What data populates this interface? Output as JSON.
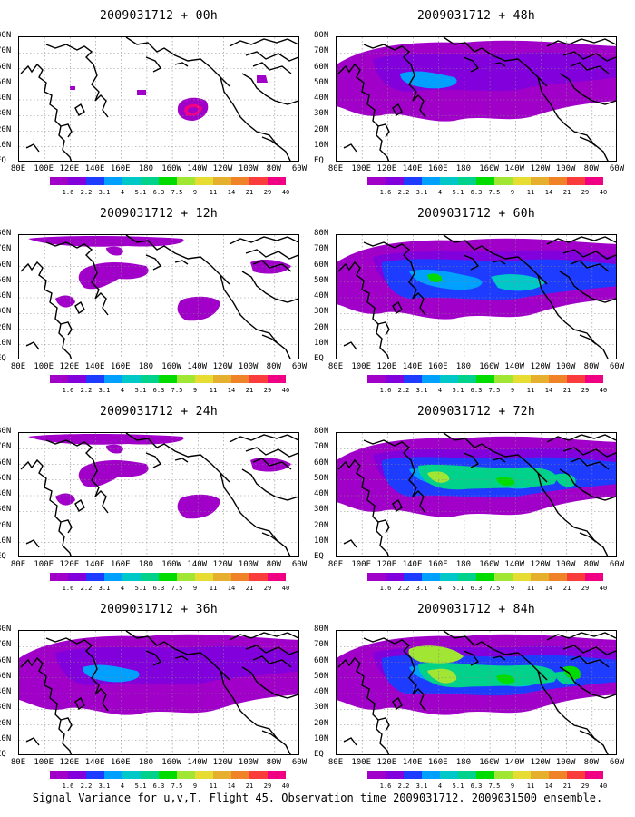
{
  "panels": [
    {
      "title": "2009031712 + 00h",
      "level": 0
    },
    {
      "title": "2009031712 + 48h",
      "level": 2
    },
    {
      "title": "2009031712 + 12h",
      "level": 1
    },
    {
      "title": "2009031712 + 60h",
      "level": 3
    },
    {
      "title": "2009031712 + 24h",
      "level": 1
    },
    {
      "title": "2009031712 + 72h",
      "level": 4
    },
    {
      "title": "2009031712 + 36h",
      "level": 2
    },
    {
      "title": "2009031712 + 84h",
      "level": 5
    }
  ],
  "lat_labels": [
    "80N",
    "70N",
    "60N",
    "50N",
    "40N",
    "30N",
    "20N",
    "10N",
    "EQ"
  ],
  "lon_labels": [
    "80E",
    "100E",
    "120E",
    "140E",
    "160E",
    "180",
    "160W",
    "140W",
    "120W",
    "100W",
    "80W",
    "60W"
  ],
  "colorbar": {
    "labels": [
      "1.6",
      "2.2",
      "3.1",
      "4",
      "5.1",
      "6.3",
      "7.5",
      "9",
      "11",
      "14",
      "21",
      "29",
      "40"
    ],
    "colors": [
      "#a000c8",
      "#8200dc",
      "#1e3cff",
      "#00a0ff",
      "#00c8c8",
      "#00d28c",
      "#00dc00",
      "#a0e632",
      "#e6dc32",
      "#e6af2d",
      "#f08228",
      "#fa3c3c",
      "#f00082"
    ]
  },
  "footer": "Signal Variance for u,v,T. Flight 45. Observation time 2009031712. 2009031500 ensemble."
}
